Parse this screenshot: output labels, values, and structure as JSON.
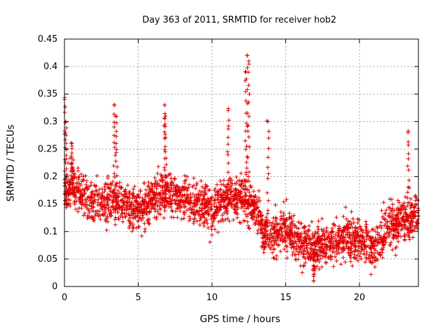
{
  "chart_data": {
    "type": "scatter",
    "title": "Day 363 of 2011, SRMTID for receiver hob2",
    "xlabel": "GPS time / hours",
    "ylabel": "SRMTID / TECUs",
    "xlim": [
      0,
      24
    ],
    "ylim": [
      0,
      0.45
    ],
    "xticks": [
      0,
      5,
      10,
      15,
      20
    ],
    "yticks": [
      0,
      0.05,
      0.1,
      0.15,
      0.2,
      0.25,
      0.3,
      0.35,
      0.4,
      0.45
    ],
    "grid": true,
    "marker": "+",
    "color": "#e00000",
    "series": [
      {
        "name": "SRMTID",
        "trend": {
          "x": [
            0,
            0.5,
            1,
            2,
            3,
            4,
            5,
            6,
            7,
            8,
            9,
            10,
            11,
            12,
            13,
            13.5,
            14,
            15,
            16,
            17,
            18,
            19,
            20,
            21,
            22,
            23,
            24
          ],
          "y": [
            0.17,
            0.19,
            0.17,
            0.15,
            0.16,
            0.15,
            0.14,
            0.16,
            0.17,
            0.16,
            0.15,
            0.14,
            0.16,
            0.16,
            0.14,
            0.1,
            0.09,
            0.11,
            0.08,
            0.07,
            0.08,
            0.09,
            0.08,
            0.07,
            0.11,
            0.12,
            0.13
          ]
        },
        "peaks": [
          {
            "x": 0.0,
            "y": 0.34
          },
          {
            "x": 0.1,
            "y": 0.3
          },
          {
            "x": 0.5,
            "y": 0.26
          },
          {
            "x": 3.4,
            "y": 0.33
          },
          {
            "x": 3.5,
            "y": 0.31
          },
          {
            "x": 6.8,
            "y": 0.33
          },
          {
            "x": 6.85,
            "y": 0.31
          },
          {
            "x": 11.1,
            "y": 0.32
          },
          {
            "x": 12.4,
            "y": 0.42
          },
          {
            "x": 12.5,
            "y": 0.41
          },
          {
            "x": 12.3,
            "y": 0.39
          },
          {
            "x": 13.8,
            "y": 0.3
          },
          {
            "x": 23.3,
            "y": 0.28
          },
          {
            "x": 16.9,
            "y": 0.01
          }
        ]
      }
    ]
  }
}
